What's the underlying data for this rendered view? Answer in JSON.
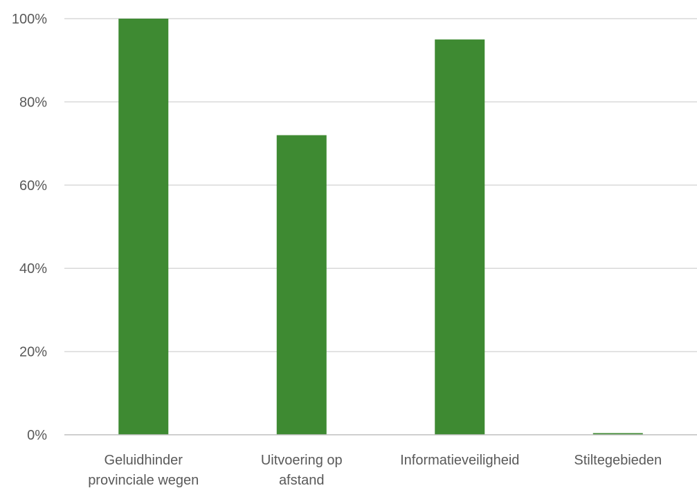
{
  "chart_data": {
    "type": "bar",
    "categories": [
      [
        "Geluidhinder",
        "provinciale wegen"
      ],
      [
        "Uitvoering op",
        "afstand"
      ],
      [
        "Informatieveiligheid"
      ],
      [
        "Stiltegebieden"
      ]
    ],
    "values": [
      100,
      72,
      95,
      0.4
    ],
    "ylim": [
      0,
      100
    ],
    "yticks": [
      0,
      20,
      40,
      60,
      80,
      100
    ],
    "ytick_labels": [
      "0%",
      "20%",
      "40%",
      "60%",
      "80%",
      "100%"
    ],
    "grid": true,
    "legend": "none",
    "colors": {
      "bar": "#3e8a32",
      "grid": "#d9d9d9",
      "axis": "#bfbfbf",
      "text": "#595959"
    }
  }
}
